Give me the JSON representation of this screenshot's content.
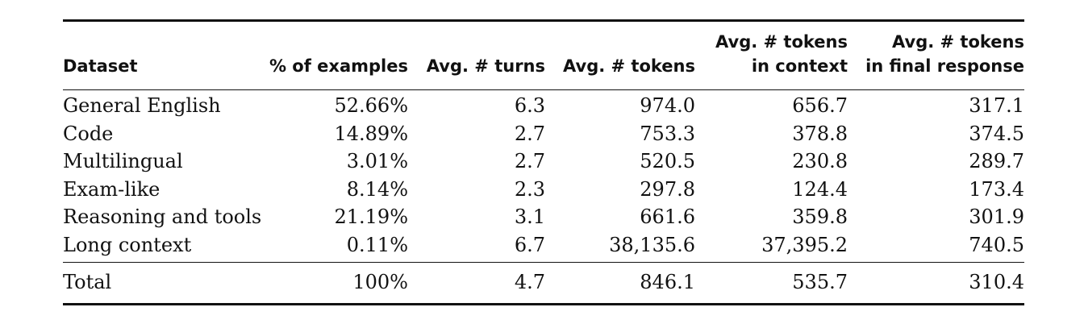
{
  "table": {
    "headers": [
      {
        "lines": [
          "Dataset"
        ]
      },
      {
        "lines": [
          "% of examples"
        ]
      },
      {
        "lines": [
          "Avg. # turns"
        ]
      },
      {
        "lines": [
          "Avg. # tokens"
        ]
      },
      {
        "lines": [
          "Avg. # tokens",
          "in context"
        ]
      },
      {
        "lines": [
          "Avg. # tokens",
          "in final response"
        ]
      }
    ],
    "rows": [
      [
        "General English",
        "52.66%",
        "6.3",
        "974.0",
        "656.7",
        "317.1"
      ],
      [
        "Code",
        "14.89%",
        "2.7",
        "753.3",
        "378.8",
        "374.5"
      ],
      [
        "Multilingual",
        "3.01%",
        "2.7",
        "520.5",
        "230.8",
        "289.7"
      ],
      [
        "Exam-like",
        "8.14%",
        "2.3",
        "297.8",
        "124.4",
        "173.4"
      ],
      [
        "Reasoning and tools",
        "21.19%",
        "3.1",
        "661.6",
        "359.8",
        "301.9"
      ],
      [
        "Long context",
        "0.11%",
        "6.7",
        "38,135.6",
        "37,395.2",
        "740.5"
      ]
    ],
    "total": [
      "Total",
      "100%",
      "4.7",
      "846.1",
      "535.7",
      "310.4"
    ]
  }
}
